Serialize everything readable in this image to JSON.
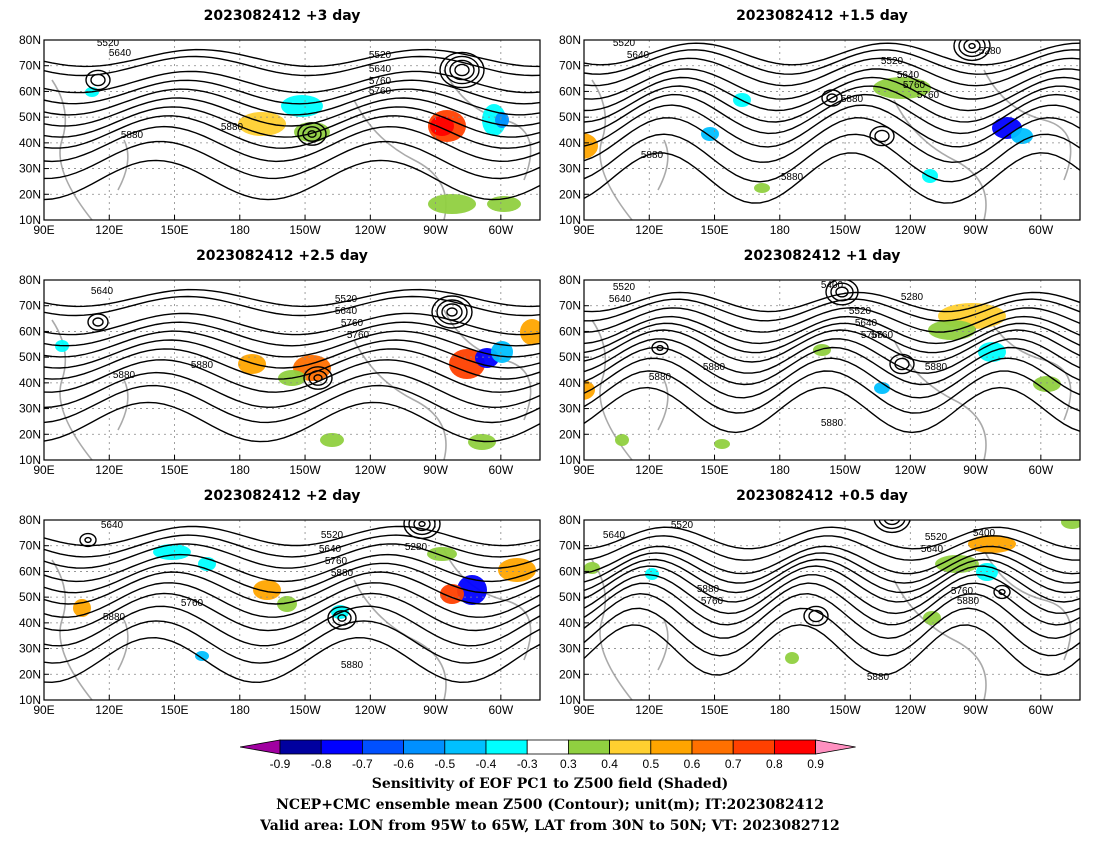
{
  "panels": [
    {
      "title": "2023082412 +3 day",
      "contours": [
        "5520",
        "5640",
        "5520",
        "5640",
        "5760",
        "5760",
        "5880",
        "5880"
      ]
    },
    {
      "title": "2023082412 +1.5 day",
      "contours": [
        "5520",
        "5640",
        "5280",
        "5520",
        "5640",
        "5760",
        "5760",
        "5880",
        "5880",
        "5880"
      ]
    },
    {
      "title": "2023082412 +2.5 day",
      "contours": [
        "5520",
        "5640",
        "5520",
        "5640",
        "5760",
        "5760",
        "5880",
        "5880"
      ]
    },
    {
      "title": "2023082412 +1 day",
      "contours": [
        "5520",
        "5640",
        "5400",
        "5280",
        "5520",
        "5640",
        "5760",
        "5760",
        "5880",
        "5880",
        "5880",
        "5880"
      ]
    },
    {
      "title": "2023082412 +2 day",
      "contours": [
        "5640",
        "5520",
        "5280",
        "5640",
        "5760",
        "5880",
        "5760",
        "5880",
        "5880"
      ]
    },
    {
      "title": "2023082412 +0.5 day",
      "contours": [
        "5520",
        "5640",
        "5400",
        "5520",
        "5640",
        "5760",
        "5880",
        "5760",
        "5880",
        "5880"
      ]
    }
  ],
  "axes": {
    "lat_labels": [
      "80N",
      "70N",
      "60N",
      "50N",
      "40N",
      "30N",
      "20N",
      "10N"
    ],
    "lon_labels": [
      "90E",
      "120E",
      "150E",
      "180",
      "150W",
      "120W",
      "90W",
      "60W"
    ]
  },
  "colorbar": {
    "ticks": [
      "-0.9",
      "-0.8",
      "-0.7",
      "-0.6",
      "-0.5",
      "-0.4",
      "-0.3",
      "0.3",
      "0.4",
      "0.5",
      "0.6",
      "0.7",
      "0.8",
      "0.9"
    ],
    "colors": [
      "#00009f",
      "#0000ff",
      "#0050ff",
      "#0090ff",
      "#00c0ff",
      "#00ffff",
      "#ffffff",
      "#90d040",
      "#ffd030",
      "#ffa500",
      "#ff7000",
      "#ff4000",
      "#ff0000"
    ],
    "low_end_color": "#a000a0",
    "high_end_color": "#ff90c0"
  },
  "captions": [
    "Sensitivity of EOF PC1 to Z500 field (Shaded)",
    "NCEP+CMC ensemble mean Z500 (Contour); unit(m); IT:2023082412",
    "Valid area: LON from 95W to 65W, LAT from 30N to 50N; VT: 2023082712"
  ]
}
